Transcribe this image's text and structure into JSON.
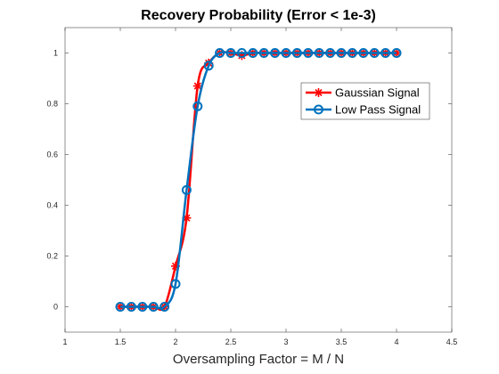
{
  "chart_data": {
    "type": "line",
    "title": "Recovery Probability (Error < 1e-3)",
    "xlabel": "Oversampling Factor = M / N",
    "ylabel": "",
    "xlim": [
      1,
      4.5
    ],
    "ylim": [
      -0.1,
      1.1
    ],
    "xticks": [
      1,
      1.5,
      2,
      2.5,
      3,
      3.5,
      4,
      4.5
    ],
    "xtick_labels": [
      "1",
      "1.5",
      "2",
      "2.5",
      "3",
      "3.5",
      "4",
      "4.5"
    ],
    "yticks": [
      0,
      0.2,
      0.4,
      0.6,
      0.8,
      1
    ],
    "ytick_labels": [
      "0",
      "0.2",
      "0.4",
      "0.6",
      "0.8",
      "1"
    ],
    "grid": false,
    "legend_position": "top-right",
    "x": [
      1.5,
      1.6,
      1.7,
      1.8,
      1.9,
      2.0,
      2.1,
      2.2,
      2.3,
      2.4,
      2.5,
      2.6,
      2.7,
      2.8,
      2.9,
      3.0,
      3.1,
      3.2,
      3.3,
      3.4,
      3.5,
      3.6,
      3.7,
      3.8,
      3.9,
      4.0
    ],
    "series": [
      {
        "name": "Gaussian Signal",
        "color": "#ff0000",
        "marker": "asterisk",
        "values": [
          0,
          0,
          0,
          0,
          0,
          0.16,
          0.35,
          0.87,
          0.96,
          1,
          1,
          0.99,
          1,
          1,
          1,
          1,
          1,
          1,
          1,
          1,
          1,
          1,
          1,
          1,
          1,
          1
        ]
      },
      {
        "name": "Low Pass Signal",
        "color": "#0072bd",
        "marker": "circle",
        "values": [
          0,
          0,
          0,
          0,
          0,
          0.09,
          0.46,
          0.79,
          0.95,
          1,
          1,
          1,
          1,
          1,
          1,
          1,
          1,
          1,
          1,
          1,
          1,
          1,
          1,
          1,
          1,
          1
        ]
      }
    ]
  }
}
